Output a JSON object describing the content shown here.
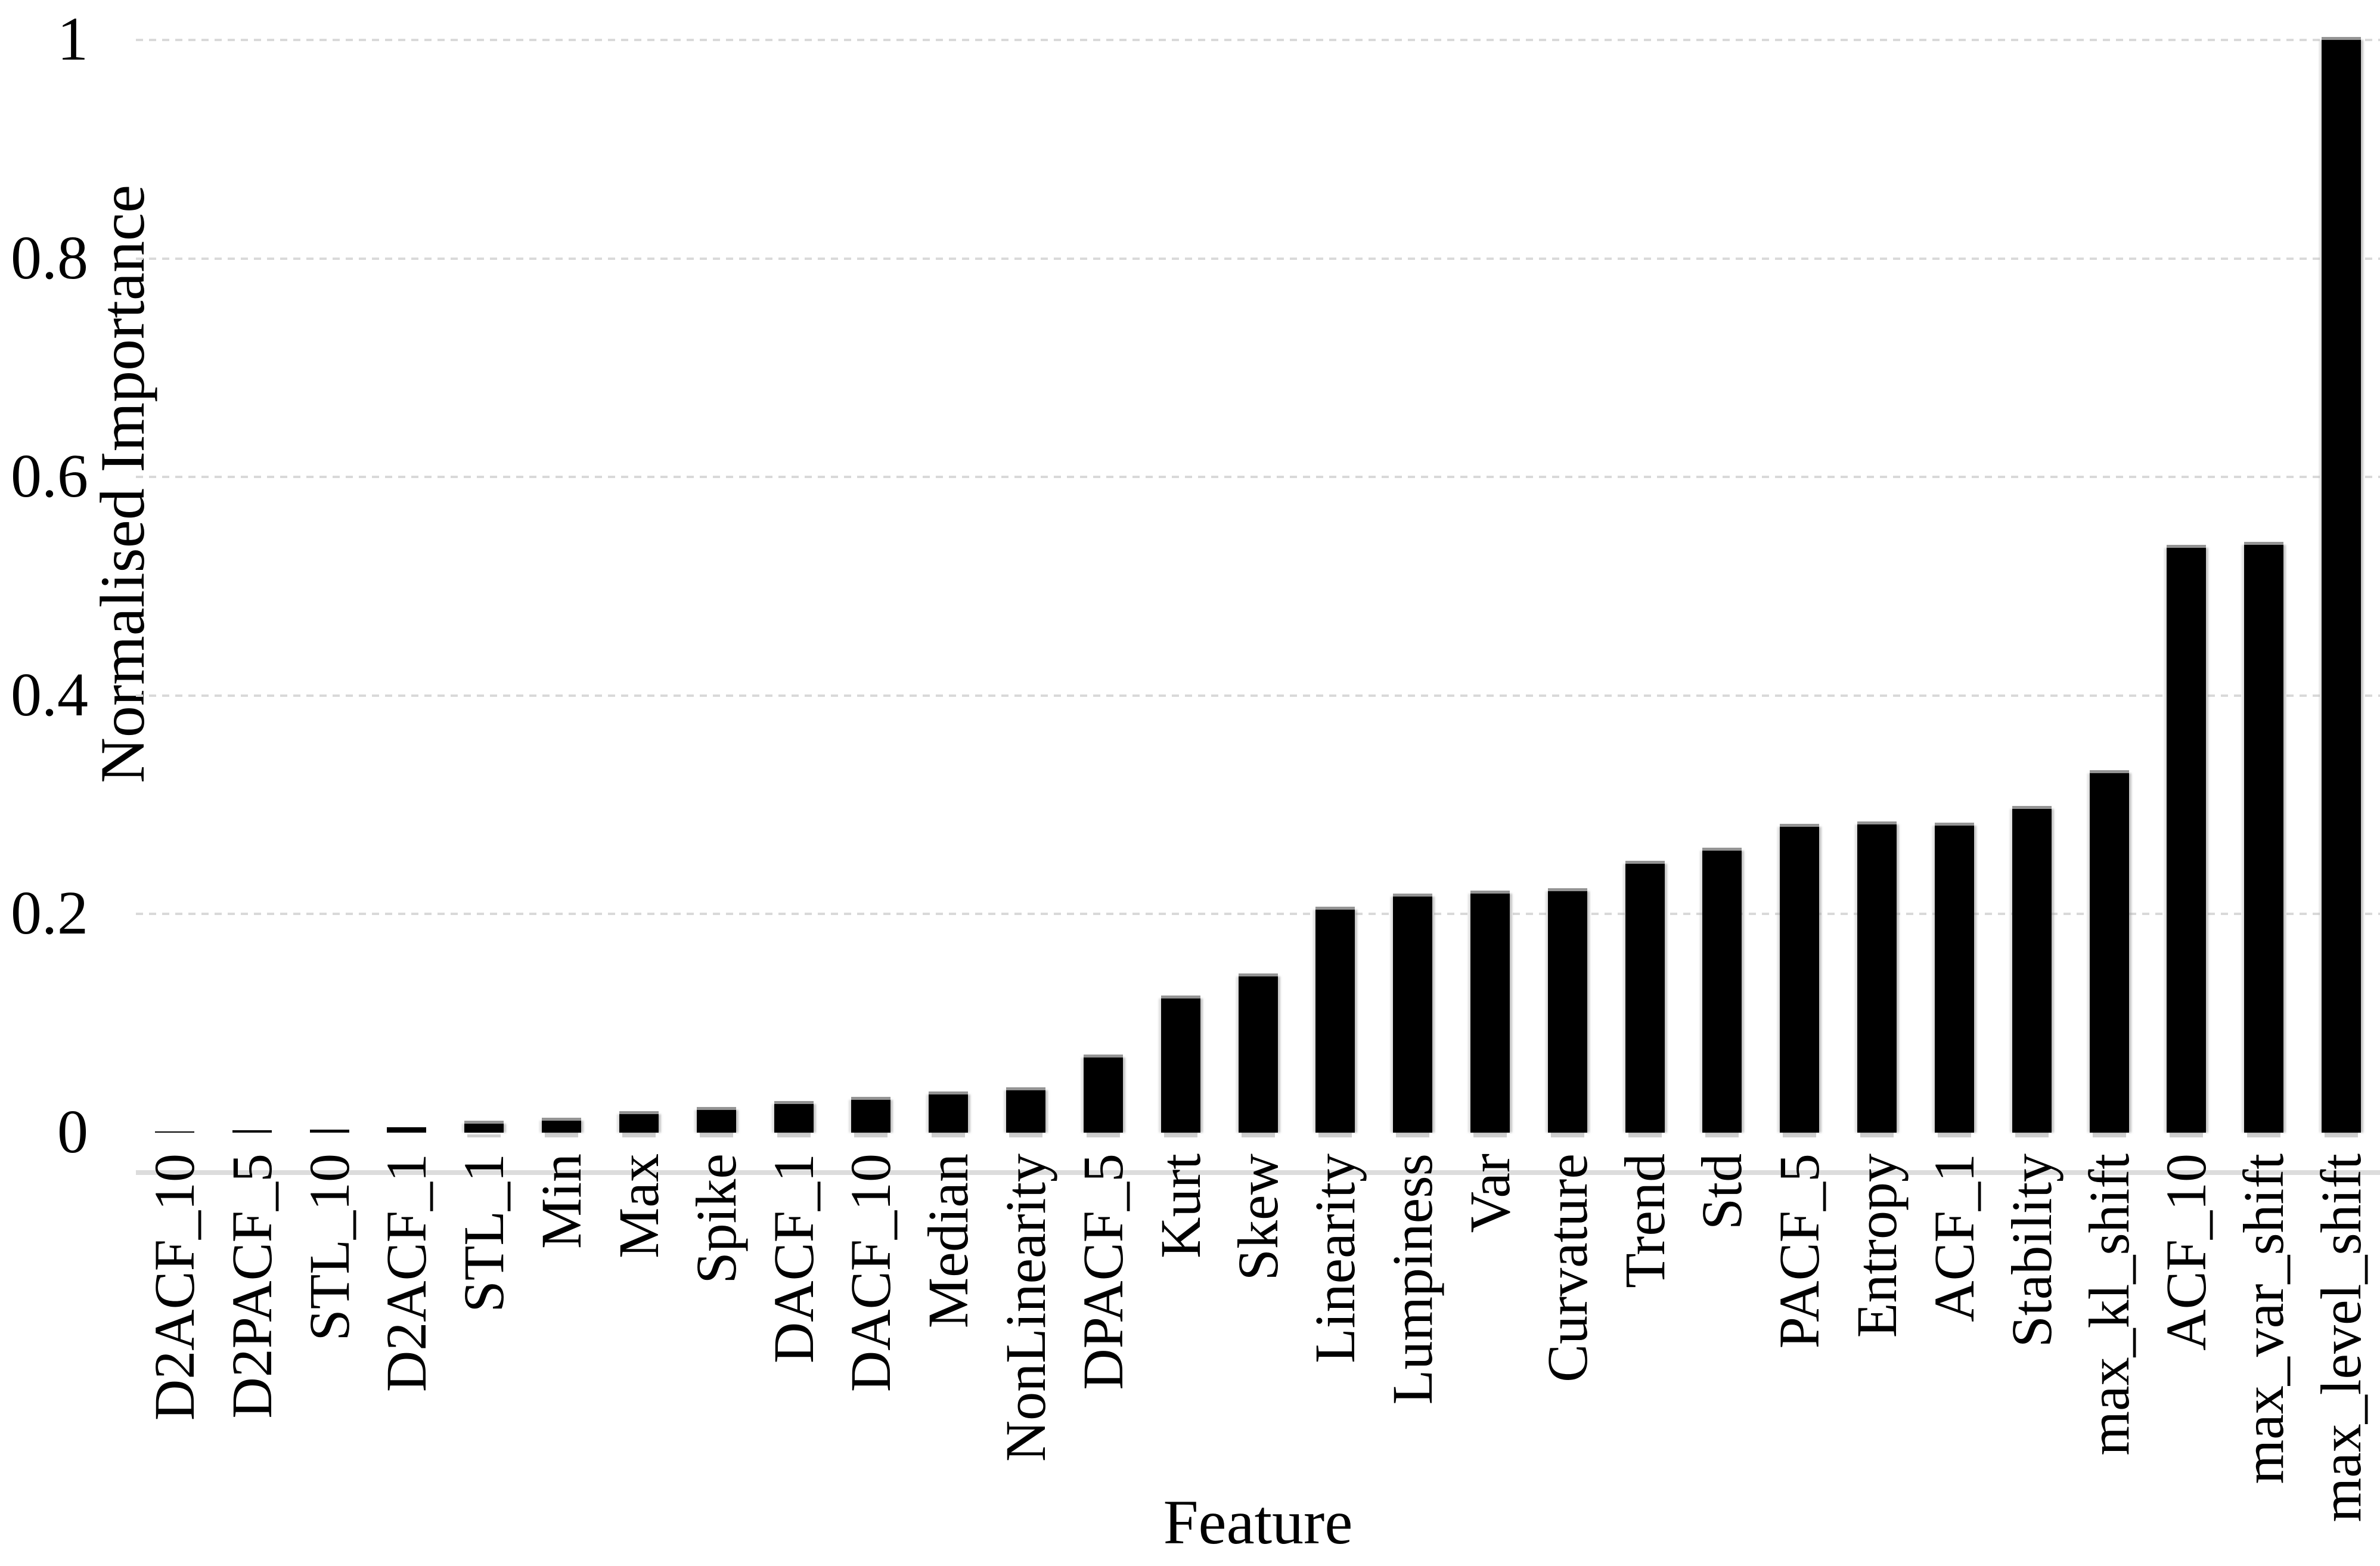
{
  "chart_data": {
    "type": "bar",
    "title": "",
    "xlabel": "Feature",
    "ylabel": "Normalised Importance",
    "ylim": [
      0,
      1
    ],
    "ytick_labels": [
      "1",
      "0.8",
      "0.6",
      "0.4",
      "0.2",
      "0"
    ],
    "ytick_values": [
      1,
      0.8,
      0.6,
      0.4,
      0.2,
      0
    ],
    "grid": "horizontal dashed gridlines every 0.2",
    "legend_position": "none",
    "bar_color": "#000000",
    "gridline_color": "#d9d9d9",
    "axis_line_color": "#dcdcdc",
    "categories": [
      "D2ACF_10",
      "D2PACF_5",
      "STL_10",
      "D2ACF_1",
      "STL_1",
      "Min",
      "Max",
      "Spike",
      "DACF_1",
      "DACF_10",
      "Median",
      "NonLinearity",
      "DPACF_5",
      "Kurt",
      "Skew",
      "Linearity",
      "Lumpiness",
      "Var",
      "Curvature",
      "Trend",
      "Std",
      "PACF_5",
      "Entropy",
      "ACF_1",
      "Stability",
      "max_kl_shift",
      "ACF_10",
      "max_var_shift",
      "max_level_shift"
    ],
    "values": [
      0.001,
      0.002,
      0.003,
      0.005,
      0.008,
      0.011,
      0.017,
      0.021,
      0.026,
      0.03,
      0.035,
      0.039,
      0.069,
      0.123,
      0.143,
      0.204,
      0.216,
      0.219,
      0.221,
      0.246,
      0.258,
      0.28,
      0.282,
      0.281,
      0.296,
      0.329,
      0.535,
      0.538,
      1.0
    ]
  }
}
